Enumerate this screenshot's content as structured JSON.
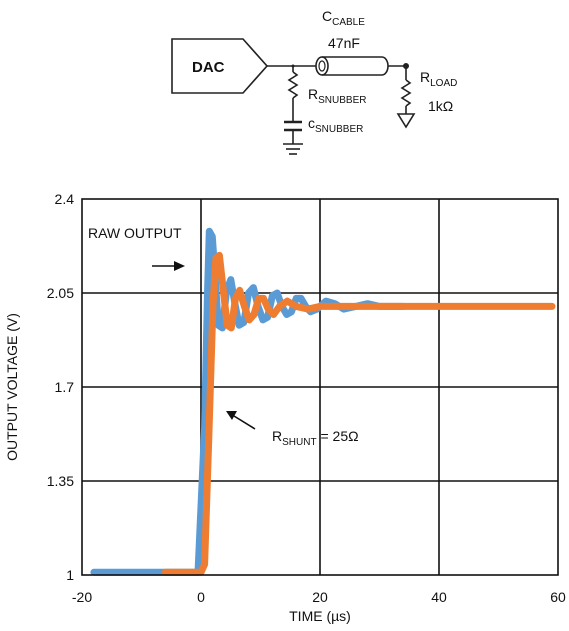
{
  "schematic": {
    "dac_label": "DAC",
    "c_cable_main": "C",
    "c_cable_sub": "CABLE",
    "c_cable_value": "47nF",
    "r_snubber_main": "R",
    "r_snubber_sub": "SNUBBER",
    "c_snubber_main": "c",
    "c_snubber_sub": "SNUBBER",
    "r_load_main": "R",
    "r_load_sub": "LOAD",
    "r_load_value": "1kΩ"
  },
  "chart_data": {
    "type": "line",
    "title": "",
    "xlabel": "TIME (µs)",
    "ylabel": "OUTPUT VOLTAGE (V)",
    "xlim": [
      -20,
      60
    ],
    "ylim": [
      1,
      2.4
    ],
    "x_ticks": [
      "-20",
      "0",
      "20",
      "40",
      "60"
    ],
    "y_ticks": [
      "1",
      "1.35",
      "1.7",
      "2.05",
      "2.4"
    ],
    "grid": true,
    "series": [
      {
        "id": "raw",
        "color": "#5b9bd5",
        "points": [
          [
            -18,
            1.01
          ],
          [
            -6,
            1.01
          ],
          [
            -0.5,
            1.01
          ],
          [
            0.6,
            1.55
          ],
          [
            1.1,
            2.05
          ],
          [
            1.4,
            2.28
          ],
          [
            1.9,
            2.26
          ],
          [
            2.4,
            2.1
          ],
          [
            2.9,
            1.93
          ],
          [
            3.6,
            1.92
          ],
          [
            4.3,
            2.06
          ],
          [
            5.0,
            2.1
          ],
          [
            5.7,
            2.01
          ],
          [
            6.4,
            1.93
          ],
          [
            7.2,
            1.94
          ],
          [
            8.0,
            2.05
          ],
          [
            8.8,
            2.07
          ],
          [
            9.6,
            2.0
          ],
          [
            10.4,
            1.95
          ],
          [
            11.2,
            1.96
          ],
          [
            12.0,
            2.04
          ],
          [
            12.8,
            2.05
          ],
          [
            13.6,
            2.0
          ],
          [
            14.4,
            1.97
          ],
          [
            15.2,
            1.98
          ],
          [
            16.0,
            2.03
          ],
          [
            16.8,
            2.03
          ],
          [
            17.6,
            2.0
          ],
          [
            18.4,
            1.98
          ],
          [
            19.5,
            1.99
          ],
          [
            21,
            2.02
          ],
          [
            22.5,
            2.01
          ],
          [
            24,
            1.99
          ],
          [
            26,
            2.0
          ],
          [
            28,
            2.01
          ],
          [
            30,
            2.0
          ],
          [
            34,
            2.0
          ]
        ]
      },
      {
        "id": "shunt",
        "color": "#ee7d31",
        "points": [
          [
            -6,
            1.01
          ],
          [
            0,
            1.01
          ],
          [
            0.6,
            1.04
          ],
          [
            1.3,
            1.5
          ],
          [
            2.0,
            2.0
          ],
          [
            2.5,
            2.18
          ],
          [
            3.1,
            2.19
          ],
          [
            3.7,
            2.07
          ],
          [
            4.4,
            1.93
          ],
          [
            5.1,
            1.92
          ],
          [
            5.8,
            2.03
          ],
          [
            6.5,
            2.06
          ],
          [
            7.3,
            2.0
          ],
          [
            8.1,
            1.95
          ],
          [
            8.9,
            1.97
          ],
          [
            9.7,
            2.03
          ],
          [
            10.5,
            2.03
          ],
          [
            11.3,
            1.99
          ],
          [
            12.2,
            1.97
          ],
          [
            13.2,
            2.0
          ],
          [
            14.5,
            2.02
          ],
          [
            16,
            2.0
          ],
          [
            18,
            1.99
          ],
          [
            20,
            2.0
          ],
          [
            25,
            2.0
          ],
          [
            35,
            2.0
          ],
          [
            45,
            2.0
          ],
          [
            59,
            2.0
          ]
        ]
      }
    ],
    "annotations": [
      {
        "id": "raw",
        "text": "RAW OUTPUT"
      },
      {
        "id": "shunt",
        "main": "R",
        "sub": "SHUNT",
        "rest": " = 25Ω"
      }
    ]
  }
}
